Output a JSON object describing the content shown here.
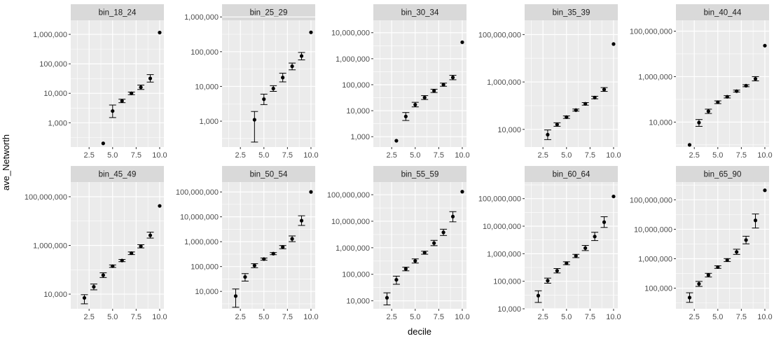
{
  "chart_data": {
    "type": "scatter",
    "chart_subtype": "faceted point with error bars",
    "xlabel": "decile",
    "ylabel": "ave_Networth",
    "y_scale": "log10",
    "x_ticks": [
      "2.5",
      "5.0",
      "7.5",
      "10.0"
    ],
    "x_range": [
      1,
      10
    ],
    "grid": true,
    "colors": {
      "panel_bg": "#ebebeb",
      "strip_bg": "#d9d9d9",
      "grid": "#ffffff",
      "point": "#000000"
    },
    "facets": [
      {
        "name": "bin_18_24",
        "y_ticks": [
          "1,000",
          "10,000",
          "100,000",
          "1,000,000"
        ],
        "ylim": [
          150,
          3000000
        ],
        "points": [
          {
            "x": 4,
            "y": 200
          },
          {
            "x": 5,
            "y": 2500,
            "ymin": 1500,
            "ymax": 4000
          },
          {
            "x": 6,
            "y": 5500,
            "ymin": 4800,
            "ymax": 6300
          },
          {
            "x": 7,
            "y": 10000,
            "ymin": 9000,
            "ymax": 11000
          },
          {
            "x": 8,
            "y": 16000,
            "ymin": 13500,
            "ymax": 19000
          },
          {
            "x": 9,
            "y": 32000,
            "ymin": 24000,
            "ymax": 43000
          },
          {
            "x": 10,
            "y": 1150000
          }
        ]
      },
      {
        "name": "bin_25_29",
        "y_ticks": [
          "1,000",
          "10,000",
          "100,000",
          "1,000,000"
        ],
        "ylim": [
          180,
          800000
        ],
        "points": [
          {
            "x": 4,
            "y": 1100,
            "ymin": 250,
            "ymax": 1900
          },
          {
            "x": 5,
            "y": 4300,
            "ymin": 3000,
            "ymax": 6000
          },
          {
            "x": 6,
            "y": 8700,
            "ymin": 7200,
            "ymax": 10500
          },
          {
            "x": 7,
            "y": 18000,
            "ymin": 13500,
            "ymax": 24000
          },
          {
            "x": 8,
            "y": 38000,
            "ymin": 30000,
            "ymax": 47000
          },
          {
            "x": 9,
            "y": 75000,
            "ymin": 58000,
            "ymax": 95000
          },
          {
            "x": 10,
            "y": 360000
          }
        ]
      },
      {
        "name": "bin_30_34",
        "y_ticks": [
          "1,000",
          "10,000",
          "100,000",
          "1,000,000",
          "10,000,000"
        ],
        "ylim": [
          400,
          30000000
        ],
        "points": [
          {
            "x": 3,
            "y": 700
          },
          {
            "x": 4,
            "y": 6000,
            "ymin": 4200,
            "ymax": 8500
          },
          {
            "x": 5,
            "y": 17000,
            "ymin": 14000,
            "ymax": 21000
          },
          {
            "x": 6,
            "y": 32000,
            "ymin": 27000,
            "ymax": 38000
          },
          {
            "x": 7,
            "y": 58000,
            "ymin": 50000,
            "ymax": 67000
          },
          {
            "x": 8,
            "y": 100000,
            "ymin": 87000,
            "ymax": 115000
          },
          {
            "x": 9,
            "y": 190000,
            "ymin": 155000,
            "ymax": 230000
          },
          {
            "x": 10,
            "y": 4300000
          }
        ]
      },
      {
        "name": "bin_35_39",
        "y_ticks": [
          "10,000",
          "1,000,000",
          "100,000,000"
        ],
        "ylim": [
          1800,
          400000000
        ],
        "points": [
          {
            "x": 3,
            "y": 6000,
            "ymin": 3700,
            "ymax": 9500
          },
          {
            "x": 4,
            "y": 16000,
            "ymin": 13500,
            "ymax": 19000
          },
          {
            "x": 5,
            "y": 33000,
            "ymin": 29000,
            "ymax": 37000
          },
          {
            "x": 6,
            "y": 65000,
            "ymin": 59000,
            "ymax": 72000
          },
          {
            "x": 7,
            "y": 120000,
            "ymin": 105000,
            "ymax": 135000
          },
          {
            "x": 8,
            "y": 220000,
            "ymin": 195000,
            "ymax": 250000
          },
          {
            "x": 9,
            "y": 480000,
            "ymin": 400000,
            "ymax": 580000
          },
          {
            "x": 10,
            "y": 40000000
          }
        ]
      },
      {
        "name": "bin_40_44",
        "y_ticks": [
          "10,000",
          "1,000,000",
          "100,000,000"
        ],
        "ylim": [
          800,
          300000000
        ],
        "points": [
          {
            "x": 2,
            "y": 1000
          },
          {
            "x": 3,
            "y": 9500,
            "ymin": 6500,
            "ymax": 13000
          },
          {
            "x": 4,
            "y": 30000,
            "ymin": 24000,
            "ymax": 37000
          },
          {
            "x": 5,
            "y": 75000,
            "ymin": 65000,
            "ymax": 86000
          },
          {
            "x": 6,
            "y": 130000,
            "ymin": 115000,
            "ymax": 145000
          },
          {
            "x": 7,
            "y": 230000,
            "ymin": 210000,
            "ymax": 255000
          },
          {
            "x": 8,
            "y": 400000,
            "ymin": 360000,
            "ymax": 440000
          },
          {
            "x": 9,
            "y": 800000,
            "ymin": 650000,
            "ymax": 1000000
          },
          {
            "x": 10,
            "y": 23000000
          }
        ]
      },
      {
        "name": "bin_45_49",
        "y_ticks": [
          "10,000",
          "1,000,000",
          "100,000,000"
        ],
        "ylim": [
          2500,
          400000000
        ],
        "points": [
          {
            "x": 2,
            "y": 7000,
            "ymin": 4000,
            "ymax": 9500
          },
          {
            "x": 3,
            "y": 20000,
            "ymin": 15000,
            "ymax": 26000
          },
          {
            "x": 4,
            "y": 60000,
            "ymin": 48000,
            "ymax": 75000
          },
          {
            "x": 5,
            "y": 140000,
            "ymin": 125000,
            "ymax": 158000
          },
          {
            "x": 6,
            "y": 240000,
            "ymin": 215000,
            "ymax": 265000
          },
          {
            "x": 7,
            "y": 480000,
            "ymin": 420000,
            "ymax": 540000
          },
          {
            "x": 8,
            "y": 920000,
            "ymin": 790000,
            "ymax": 1070000
          },
          {
            "x": 9,
            "y": 2600000,
            "ymin": 2000000,
            "ymax": 3500000
          },
          {
            "x": 10,
            "y": 42000000
          }
        ]
      },
      {
        "name": "bin_50_54",
        "y_ticks": [
          "10,000",
          "100,000",
          "1,000,000",
          "10,000,000",
          "100,000,000"
        ],
        "ylim": [
          2000,
          250000000
        ],
        "points": [
          {
            "x": 2,
            "y": 6500,
            "ymin": 2300,
            "ymax": 12500
          },
          {
            "x": 3,
            "y": 38000,
            "ymin": 26000,
            "ymax": 52000
          },
          {
            "x": 4,
            "y": 110000,
            "ymin": 90000,
            "ymax": 130000
          },
          {
            "x": 5,
            "y": 200000,
            "ymin": 180000,
            "ymax": 220000
          },
          {
            "x": 6,
            "y": 330000,
            "ymin": 300000,
            "ymax": 365000
          },
          {
            "x": 7,
            "y": 610000,
            "ymin": 520000,
            "ymax": 700000
          },
          {
            "x": 8,
            "y": 1300000,
            "ymin": 1000000,
            "ymax": 1700000
          },
          {
            "x": 9,
            "y": 7000000,
            "ymin": 4500000,
            "ymax": 11000000
          },
          {
            "x": 10,
            "y": 100000000
          }
        ]
      },
      {
        "name": "bin_55_59",
        "y_ticks": [
          "10,000",
          "100,000",
          "1,000,000",
          "10,000,000",
          "100,000,000"
        ],
        "ylim": [
          5000,
          300000000
        ],
        "points": [
          {
            "x": 2,
            "y": 13000,
            "ymin": 7000,
            "ymax": 20000
          },
          {
            "x": 3,
            "y": 62000,
            "ymin": 42000,
            "ymax": 85000
          },
          {
            "x": 4,
            "y": 160000,
            "ymin": 135000,
            "ymax": 185000
          },
          {
            "x": 5,
            "y": 320000,
            "ymin": 265000,
            "ymax": 380000
          },
          {
            "x": 6,
            "y": 650000,
            "ymin": 570000,
            "ymax": 740000
          },
          {
            "x": 7,
            "y": 1500000,
            "ymin": 1200000,
            "ymax": 1900000
          },
          {
            "x": 8,
            "y": 3800000,
            "ymin": 2900000,
            "ymax": 5000000
          },
          {
            "x": 9,
            "y": 15000000,
            "ymin": 9500000,
            "ymax": 23000000
          },
          {
            "x": 10,
            "y": 130000000
          }
        ]
      },
      {
        "name": "bin_60_64",
        "y_ticks": [
          "10,000",
          "100,000",
          "1,000,000",
          "10,000,000",
          "100,000,000"
        ],
        "ylim": [
          10000,
          400000000
        ],
        "points": [
          {
            "x": 2,
            "y": 30000,
            "ymin": 17000,
            "ymax": 45000
          },
          {
            "x": 3,
            "y": 105000,
            "ymin": 85000,
            "ymax": 130000
          },
          {
            "x": 4,
            "y": 240000,
            "ymin": 200000,
            "ymax": 290000
          },
          {
            "x": 5,
            "y": 450000,
            "ymin": 400000,
            "ymax": 510000
          },
          {
            "x": 6,
            "y": 830000,
            "ymin": 720000,
            "ymax": 950000
          },
          {
            "x": 7,
            "y": 1600000,
            "ymin": 1300000,
            "ymax": 2000000
          },
          {
            "x": 8,
            "y": 4200000,
            "ymin": 3000000,
            "ymax": 6000000
          },
          {
            "x": 9,
            "y": 14000000,
            "ymin": 9000000,
            "ymax": 22000000
          },
          {
            "x": 10,
            "y": 120000000
          }
        ]
      },
      {
        "name": "bin_65_90",
        "y_ticks": [
          "100,000",
          "1,000,000",
          "10,000,000",
          "100,000,000"
        ],
        "ylim": [
          20000,
          400000000
        ],
        "points": [
          {
            "x": 2,
            "y": 48000,
            "ymin": 33000,
            "ymax": 70000
          },
          {
            "x": 3,
            "y": 140000,
            "ymin": 115000,
            "ymax": 170000
          },
          {
            "x": 4,
            "y": 280000,
            "ymin": 240000,
            "ymax": 320000
          },
          {
            "x": 5,
            "y": 520000,
            "ymin": 470000,
            "ymax": 575000
          },
          {
            "x": 6,
            "y": 900000,
            "ymin": 800000,
            "ymax": 1010000
          },
          {
            "x": 7,
            "y": 1700000,
            "ymin": 1400000,
            "ymax": 2100000
          },
          {
            "x": 8,
            "y": 4300000,
            "ymin": 3200000,
            "ymax": 5800000
          },
          {
            "x": 9,
            "y": 20000000,
            "ymin": 11000000,
            "ymax": 33000000
          },
          {
            "x": 10,
            "y": 210000000
          }
        ]
      }
    ]
  }
}
